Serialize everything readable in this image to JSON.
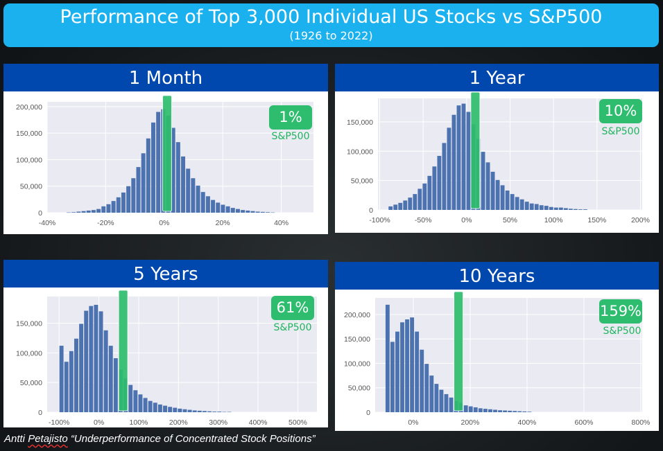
{
  "header": {
    "title": "Performance of Top 3,000 Individual US Stocks vs S&P500",
    "subtitle": "(1926 to 2022)"
  },
  "footer": {
    "author": "Antti Petajisto",
    "author_first": "Antti ",
    "author_last": "Petajisto",
    "work": " “Underperformance of Concentrated Stock Positions”"
  },
  "colors": {
    "bars": "#4c72b0",
    "benchmark": "#2ebd6e",
    "header": "#0048ad",
    "banner": "#1bb1ee",
    "plot_bg": "#eaeaf2"
  },
  "chart_data": [
    {
      "type": "bar",
      "title": "1 Month",
      "x_start": -32.5,
      "bin_width": 1.7,
      "values": [
        500,
        1000,
        2000,
        3000,
        4000,
        5000,
        7000,
        12000,
        16000,
        22000,
        29000,
        38000,
        50000,
        65000,
        86000,
        112000,
        140000,
        170000,
        190000,
        195000,
        183000,
        160000,
        133000,
        106000,
        83000,
        65000,
        51000,
        39000,
        31000,
        24000,
        19000,
        15000,
        12000,
        9000,
        7000,
        5000,
        4000,
        3000,
        2000,
        1500,
        1000,
        500
      ],
      "xlim": [
        -40,
        51
      ],
      "ylim": [
        0,
        209000
      ],
      "xticks": [
        {
          "v": -40,
          "label": "-40%"
        },
        {
          "v": -20,
          "label": "-20%"
        },
        {
          "v": 0,
          "label": "0%"
        },
        {
          "v": 20,
          "label": "20%"
        },
        {
          "v": 40,
          "label": "40%"
        }
      ],
      "yticks": [
        {
          "v": 0,
          "label": "0"
        },
        {
          "v": 50000,
          "label": "50,000"
        },
        {
          "v": 100000,
          "label": "100,000"
        },
        {
          "v": 150000,
          "label": "150,000"
        },
        {
          "v": 200000,
          "label": "200,000"
        }
      ],
      "grid": true,
      "benchmark": {
        "name": "S&P500",
        "value": 1,
        "label": "1%"
      }
    },
    {
      "type": "bar",
      "title": "1 Year",
      "x_start": -87,
      "bin_width": 5.6,
      "values": [
        6000,
        9000,
        12000,
        16000,
        21000,
        27000,
        36000,
        45000,
        58000,
        74000,
        92000,
        114000,
        140000,
        162000,
        178000,
        181000,
        167000,
        146000,
        121000,
        99000,
        81000,
        65000,
        51000,
        42000,
        33000,
        27000,
        22000,
        18000,
        14000,
        11000,
        10000,
        8000,
        7000,
        5000,
        4000,
        4000,
        3000,
        2000,
        1500,
        1000,
        1000
      ],
      "xlim": [
        -102,
        202
      ],
      "ylim": [
        0,
        190000
      ],
      "xticks": [
        {
          "v": -100,
          "label": "-100%"
        },
        {
          "v": -50,
          "label": "-50%"
        },
        {
          "v": 0,
          "label": "0%"
        },
        {
          "v": 50,
          "label": "50%"
        },
        {
          "v": 100,
          "label": "100%"
        },
        {
          "v": 150,
          "label": "150%"
        },
        {
          "v": 200,
          "label": "200%"
        }
      ],
      "yticks": [
        {
          "v": 0,
          "label": "0"
        },
        {
          "v": 50000,
          "label": "50,000"
        },
        {
          "v": 100000,
          "label": "100,000"
        },
        {
          "v": 150000,
          "label": "150,000"
        }
      ],
      "grid": true,
      "benchmark": {
        "name": "S&P500",
        "value": 10,
        "label": "10%"
      }
    },
    {
      "type": "bar",
      "title": "5 Years",
      "x_start": -93,
      "bin_width": 12.4,
      "values": [
        112000,
        85000,
        103000,
        124000,
        149000,
        171000,
        179000,
        181000,
        170000,
        138000,
        112000,
        91000,
        72000,
        57000,
        46000,
        37000,
        30000,
        24000,
        19000,
        16000,
        13000,
        11000,
        9000,
        7500,
        6000,
        5000,
        4000,
        3000,
        2500,
        2000,
        1500,
        1000,
        1000,
        500,
        500
      ],
      "xlim": [
        -130,
        548
      ],
      "ylim": [
        0,
        195000
      ],
      "xticks": [
        {
          "v": -100,
          "label": "-100%"
        },
        {
          "v": 0,
          "label": "0%"
        },
        {
          "v": 100,
          "label": "100%"
        },
        {
          "v": 200,
          "label": "200%"
        },
        {
          "v": 300,
          "label": "300%"
        },
        {
          "v": 400,
          "label": "400%"
        },
        {
          "v": 500,
          "label": "500%"
        }
      ],
      "yticks": [
        {
          "v": 0,
          "label": "0"
        },
        {
          "v": 50000,
          "label": "50,000"
        },
        {
          "v": 100000,
          "label": "100,000"
        },
        {
          "v": 150000,
          "label": "150,000"
        }
      ],
      "grid": true,
      "benchmark": {
        "name": "S&P500",
        "value": 61,
        "label": "61%"
      }
    },
    {
      "type": "bar",
      "title": "10 Years",
      "x_start": -89,
      "bin_width": 17.2,
      "values": [
        220000,
        144000,
        165000,
        184000,
        190000,
        194000,
        165000,
        128000,
        99000,
        75000,
        58000,
        46000,
        37000,
        30000,
        23000,
        19000,
        14000,
        12000,
        10000,
        8000,
        7000,
        6000,
        5000,
        4000,
        3500,
        3000,
        2500,
        2000,
        1500,
        1000
      ],
      "xlim": [
        -134,
        805
      ],
      "ylim": [
        0,
        234000
      ],
      "xticks": [
        {
          "v": 0,
          "label": "0%"
        },
        {
          "v": 200,
          "label": "200%"
        },
        {
          "v": 400,
          "label": "400%"
        },
        {
          "v": 600,
          "label": "600%"
        },
        {
          "v": 800,
          "label": "800%"
        }
      ],
      "yticks": [
        {
          "v": 0,
          "label": "0"
        },
        {
          "v": 50000,
          "label": "50,000"
        },
        {
          "v": 100000,
          "label": "100,000"
        },
        {
          "v": 150000,
          "label": "150,000"
        },
        {
          "v": 200000,
          "label": "200,000"
        }
      ],
      "grid": true,
      "benchmark": {
        "name": "S&P500",
        "value": 159,
        "label": "159%"
      }
    }
  ]
}
